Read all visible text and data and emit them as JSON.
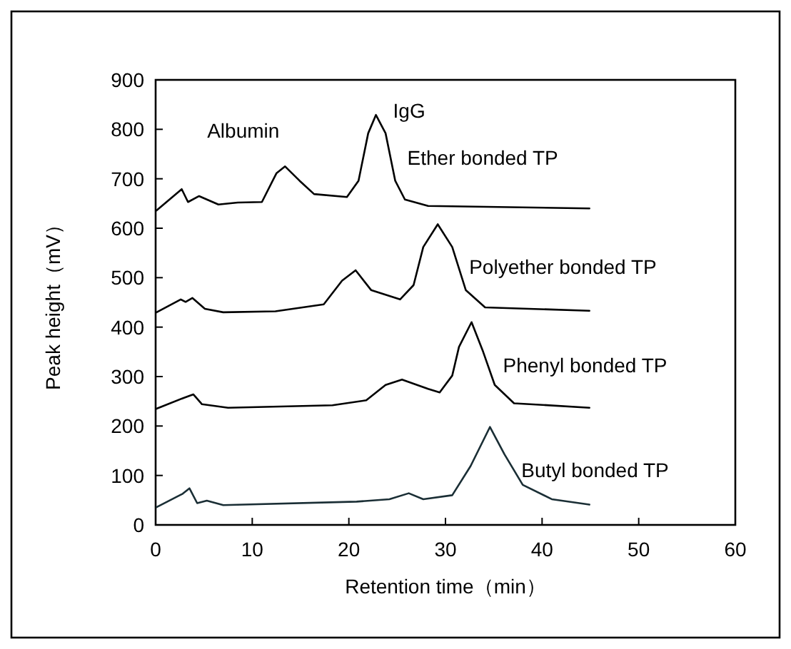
{
  "chart_data": {
    "type": "line",
    "xlabel": "Retention time（min）",
    "ylabel": "Peak height（mV）",
    "xlim": [
      0,
      60
    ],
    "ylim": [
      0,
      900
    ],
    "xticks": [
      0,
      10,
      20,
      30,
      40,
      50,
      60
    ],
    "yticks": [
      0,
      100,
      200,
      300,
      400,
      500,
      600,
      700,
      800,
      900
    ],
    "grid": false,
    "legend": false,
    "marker": "none",
    "line_style": "solid",
    "annotations": [
      {
        "text": "Albumin",
        "x": 13.4,
        "y": 725
      },
      {
        "text": "IgG",
        "x": 22.8,
        "y": 829
      }
    ],
    "series": [
      {
        "name": "Ether bonded TP",
        "color": "#000000",
        "x": [
          0.1,
          2.7,
          3.35,
          4.5,
          6.5,
          8.5,
          11,
          12.5,
          13.4,
          14.9,
          16.4,
          19.8,
          21.0,
          22.0,
          22.8,
          23.8,
          24.8,
          25.8,
          28.2,
          44.9
        ],
        "values": [
          636,
          679,
          653,
          665,
          648,
          652,
          653,
          711,
          725,
          696,
          669,
          663,
          696,
          792,
          829,
          792,
          696,
          658,
          645,
          640
        ]
      },
      {
        "name": "Polyether bonded TP",
        "color": "#000000",
        "x": [
          0.1,
          2.6,
          3.1,
          3.8,
          5.1,
          7.0,
          12.4,
          17.4,
          19.3,
          20.7,
          22.3,
          25.3,
          26.7,
          27.7,
          29.2,
          30.7,
          32.1,
          34.1,
          44.9
        ],
        "values": [
          430,
          456,
          451,
          459,
          437,
          430,
          432,
          446,
          494,
          515,
          475,
          456,
          485,
          562,
          608,
          562,
          475,
          440,
          433
        ]
      },
      {
        "name": "Phenyl bonded TP",
        "color": "#000000",
        "x": [
          0.1,
          2.8,
          3.9,
          4.8,
          7.5,
          18.3,
          21.8,
          23.8,
          25.5,
          28.2,
          29.4,
          30.7,
          31.4,
          32.7,
          33.9,
          35.1,
          37.1,
          44.9
        ],
        "values": [
          235,
          256,
          264,
          244,
          237,
          242,
          252,
          283,
          294,
          275,
          268,
          302,
          360,
          410,
          350,
          283,
          246,
          237
        ]
      },
      {
        "name": "Butyl bonded TP",
        "color": "#1a2e35",
        "x": [
          0.1,
          2.5,
          2.8,
          3.5,
          4.3,
          5.3,
          7.0,
          20.8,
          24.2,
          26.2,
          27.7,
          30.7,
          32.6,
          34.6,
          36.1,
          38.0,
          41.0,
          44.9
        ],
        "values": [
          36,
          60,
          63,
          74,
          44,
          49,
          40,
          47,
          52,
          64,
          52,
          60,
          119,
          198,
          143,
          81,
          52,
          41
        ]
      }
    ]
  }
}
